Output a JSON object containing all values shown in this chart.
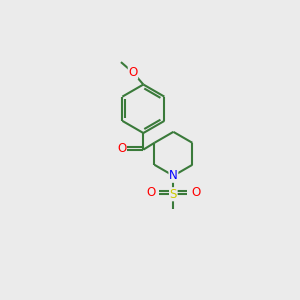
{
  "bg_color": "#ebebeb",
  "bond_color": "#3a7a3a",
  "atom_colors": {
    "O": "#ff0000",
    "N": "#0000ff",
    "S": "#cccc00"
  },
  "font_size": 8.5,
  "line_width": 1.5,
  "fig_width": 3.0,
  "fig_height": 3.0,
  "dpi": 100
}
